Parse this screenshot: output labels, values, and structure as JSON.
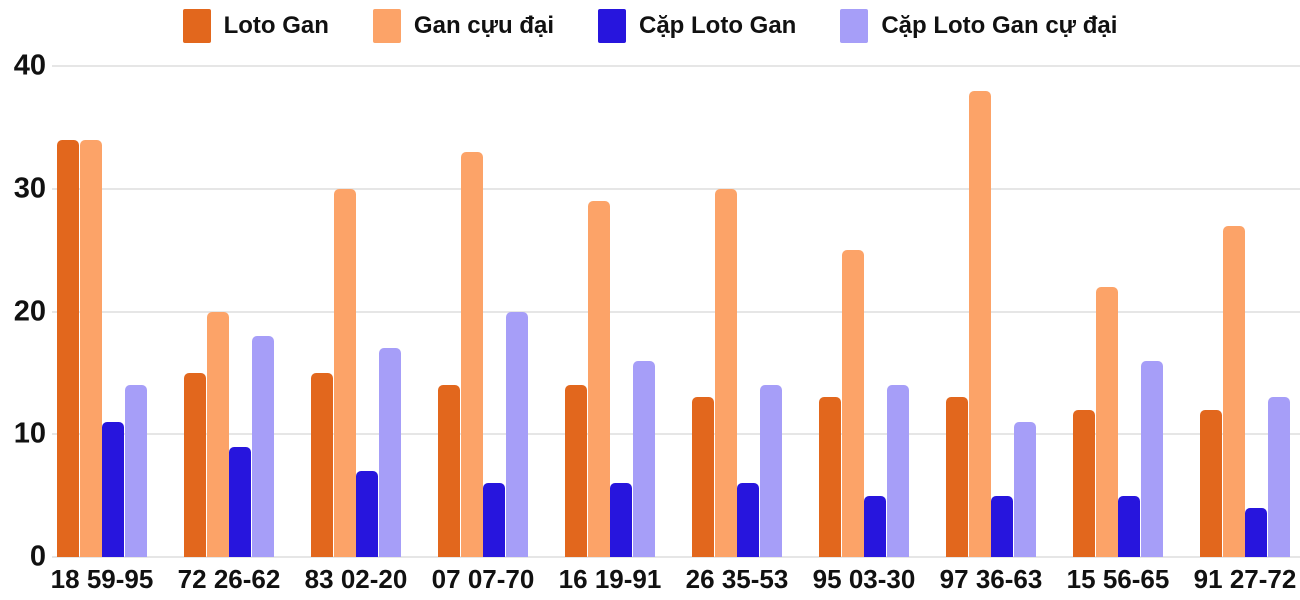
{
  "chart_data": {
    "type": "bar",
    "title": "",
    "xlabel": "",
    "ylabel": "",
    "categories": [
      "18 59-95",
      "72 26-62",
      "83 02-20",
      "07 07-70",
      "16 19-91",
      "26 35-53",
      "95 03-30",
      "97 36-63",
      "15 56-65",
      "91 27-72"
    ],
    "series": [
      {
        "name": "Loto Gan",
        "color": "#e2671d",
        "values": [
          34,
          15,
          15,
          14,
          14,
          13,
          13,
          13,
          12,
          12
        ]
      },
      {
        "name": "Gan cựu đại",
        "color": "#fca368",
        "values": [
          34,
          20,
          30,
          33,
          29,
          30,
          25,
          38,
          22,
          27
        ]
      },
      {
        "name": "Cặp Loto Gan",
        "color": "#2715dd",
        "values": [
          11,
          9,
          7,
          6,
          6,
          6,
          5,
          5,
          5,
          4
        ]
      },
      {
        "name": "Cặp Loto Gan cự đại",
        "color": "#a69ef8",
        "values": [
          14,
          18,
          17,
          20,
          16,
          14,
          14,
          11,
          16,
          13
        ]
      }
    ],
    "ylim": [
      0,
      40
    ],
    "yticks": [
      0,
      10,
      20,
      30,
      40
    ],
    "grid": true,
    "legend_position": "top"
  },
  "colors": {
    "grid": "#e6e6e6",
    "text": "#111111",
    "background": "#ffffff"
  }
}
